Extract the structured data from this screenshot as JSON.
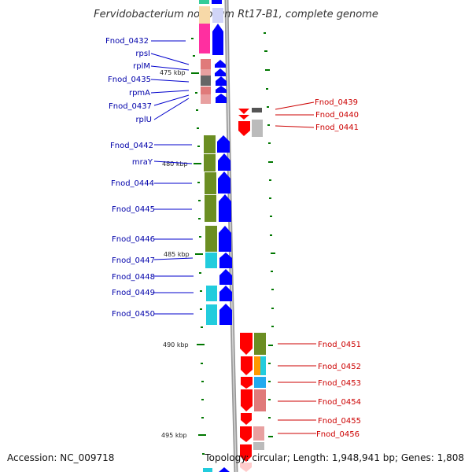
{
  "title": "Fervidobacterium nodosum Rt17-B1, complete genome",
  "footer": {
    "accession": "Accession: NC_009718",
    "topology": "Topology: circular; Length: 1,948,941 bp; Genes: 1,808"
  },
  "colors": {
    "forward_strand": "#0000ff",
    "reverse_strand": "#ff0000",
    "backbone": "#999999",
    "tick": "#007700",
    "left_label": "#0000aa",
    "right_label": "#cc0000"
  },
  "ticks": [
    "475 kbp",
    "480 kbp",
    "485 kbp",
    "490 kbp",
    "495 kbp"
  ],
  "left_genes": [
    "Fnod_0432",
    "rpsI",
    "rplM",
    "Fnod_0435",
    "rpmA",
    "Fnod_0437",
    "rplU",
    "Fnod_0442",
    "mraY",
    "Fnod_0444",
    "Fnod_0445",
    "Fnod_0446",
    "Fnod_0447",
    "Fnod_0448",
    "Fnod_0449",
    "Fnod_0450"
  ],
  "right_genes": [
    "Fnod_0439",
    "Fnod_0440",
    "Fnod_0441",
    "Fnod_0451",
    "Fnod_0452",
    "Fnod_0453",
    "Fnod_0454",
    "Fnod_0455",
    "Fnod_0456"
  ]
}
